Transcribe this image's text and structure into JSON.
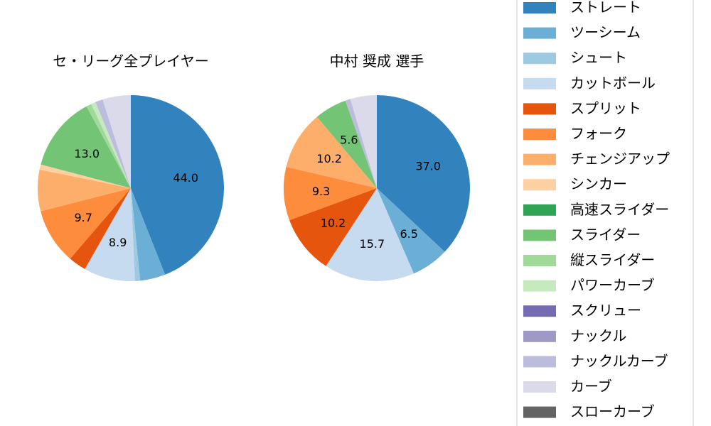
{
  "chart_data": [
    {
      "type": "pie",
      "title": "セ・リーグ全プレイヤー",
      "slices": [
        {
          "category": "ストレート",
          "value": 44.0,
          "label": "44.0"
        },
        {
          "category": "ツーシーム",
          "value": 4.4,
          "label": ""
        },
        {
          "category": "シュート",
          "value": 0.9,
          "label": ""
        },
        {
          "category": "カットボール",
          "value": 8.9,
          "label": "8.9"
        },
        {
          "category": "スプリット",
          "value": 3.1,
          "label": ""
        },
        {
          "category": "フォーク",
          "value": 9.7,
          "label": "9.7"
        },
        {
          "category": "チェンジアップ",
          "value": 7.2,
          "label": ""
        },
        {
          "category": "シンカー",
          "value": 0.9,
          "label": ""
        },
        {
          "category": "スライダー",
          "value": 13.0,
          "label": "13.0"
        },
        {
          "category": "縦スライダー",
          "value": 0.9,
          "label": ""
        },
        {
          "category": "パワーカーブ",
          "value": 0.8,
          "label": ""
        },
        {
          "category": "ナックルカーブ",
          "value": 1.3,
          "label": ""
        },
        {
          "category": "カーブ",
          "value": 4.9,
          "label": ""
        }
      ]
    },
    {
      "type": "pie",
      "title": "中村 奨成 選手",
      "slices": [
        {
          "category": "ストレート",
          "value": 37.0,
          "label": "37.0"
        },
        {
          "category": "ツーシーム",
          "value": 6.5,
          "label": "6.5"
        },
        {
          "category": "カットボール",
          "value": 15.7,
          "label": "15.7"
        },
        {
          "category": "スプリット",
          "value": 10.2,
          "label": "10.2"
        },
        {
          "category": "フォーク",
          "value": 9.3,
          "label": "9.3"
        },
        {
          "category": "チェンジアップ",
          "value": 10.2,
          "label": "10.2"
        },
        {
          "category": "スライダー",
          "value": 5.6,
          "label": "5.6"
        },
        {
          "category": "ナックルカーブ",
          "value": 0.9,
          "label": ""
        },
        {
          "category": "カーブ",
          "value": 4.6,
          "label": ""
        }
      ]
    }
  ],
  "legend": {
    "placement": "right",
    "items": [
      {
        "label": "ストレート",
        "color": "#3182bd"
      },
      {
        "label": "ツーシーム",
        "color": "#6baed6"
      },
      {
        "label": "シュート",
        "color": "#9ecae1"
      },
      {
        "label": "カットボール",
        "color": "#c6dbef"
      },
      {
        "label": "スプリット",
        "color": "#e6550d"
      },
      {
        "label": "フォーク",
        "color": "#fd8d3c"
      },
      {
        "label": "チェンジアップ",
        "color": "#fdae6b"
      },
      {
        "label": "シンカー",
        "color": "#fdd0a2"
      },
      {
        "label": "高速スライダー",
        "color": "#31a354"
      },
      {
        "label": "スライダー",
        "color": "#74c476"
      },
      {
        "label": "縦スライダー",
        "color": "#a1d99b"
      },
      {
        "label": "パワーカーブ",
        "color": "#c7e9c0"
      },
      {
        "label": "スクリュー",
        "color": "#756bb1"
      },
      {
        "label": "ナックル",
        "color": "#9e9ac8"
      },
      {
        "label": "ナックルカーブ",
        "color": "#bcbddc"
      },
      {
        "label": "カーブ",
        "color": "#dadaeb"
      },
      {
        "label": "スローカーブ",
        "color": "#636363"
      }
    ]
  }
}
